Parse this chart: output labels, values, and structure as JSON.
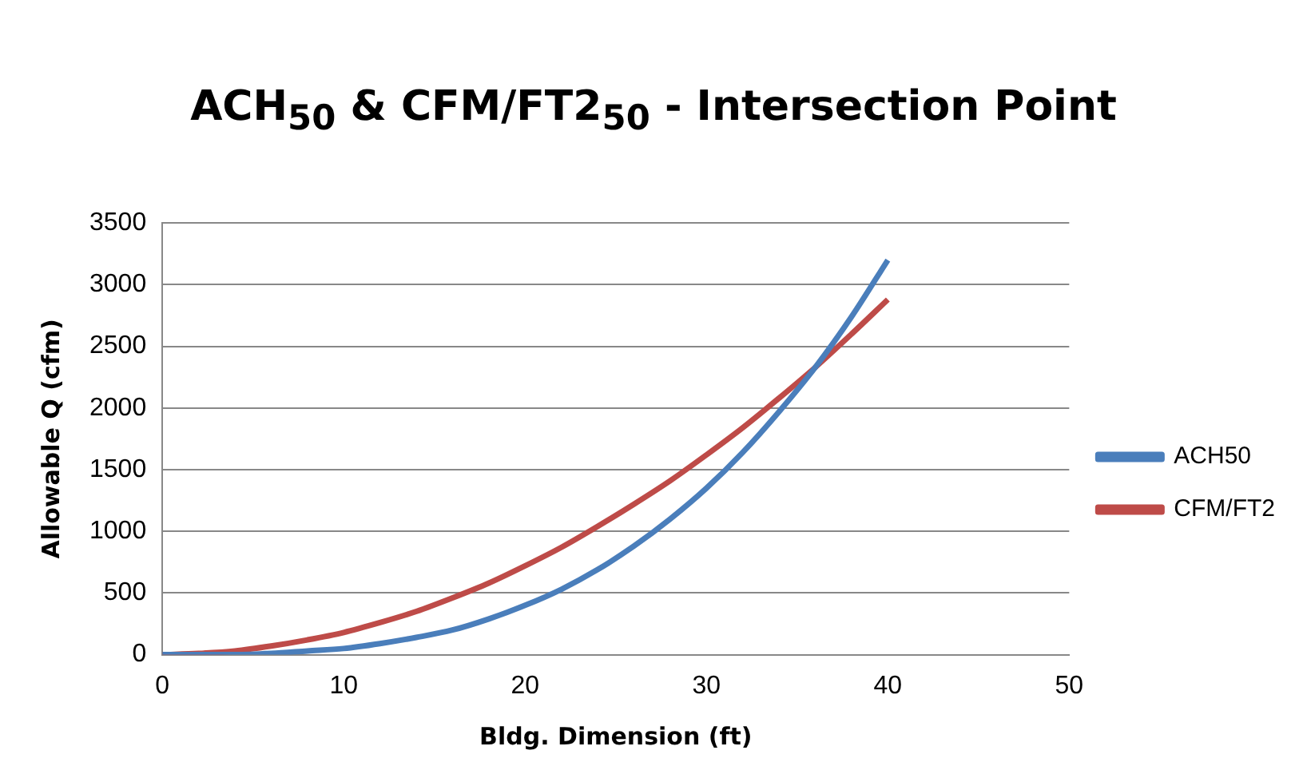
{
  "chart_data": {
    "type": "line",
    "title": "ACH$_{50}$ & CFM/FT2$_{50}$ - Intersection Point",
    "xlabel": "Bldg. Dimension (ft)",
    "ylabel": "Allowable Q (cfm)",
    "x": [
      0,
      2,
      4,
      6,
      8,
      10,
      12,
      14,
      16,
      18,
      20,
      22,
      24,
      26,
      28,
      30,
      32,
      34,
      36,
      38,
      40
    ],
    "series": [
      {
        "name": "ACH50",
        "color": "#4a7ebb",
        "values": [
          0,
          0,
          0,
          10,
          30,
          50,
          90,
          140,
          200,
          290,
          400,
          530,
          690,
          880,
          1100,
          1350,
          1640,
          1970,
          2330,
          2740,
          3200
        ]
      },
      {
        "name": "CFM/FT2",
        "color": "#be4b48",
        "values": [
          0,
          10,
          30,
          70,
          120,
          180,
          260,
          350,
          460,
          580,
          720,
          870,
          1040,
          1220,
          1410,
          1620,
          1840,
          2080,
          2330,
          2600,
          2880
        ]
      }
    ],
    "xlim": [
      0,
      50
    ],
    "xticks": [
      0,
      10,
      20,
      30,
      40,
      50
    ],
    "ylim": [
      0,
      3500
    ],
    "yticks": [
      0,
      500,
      1000,
      1500,
      2000,
      2500,
      3000,
      3500
    ],
    "grid": "y",
    "legend": "right",
    "marker": "none",
    "line_style": "solid"
  }
}
